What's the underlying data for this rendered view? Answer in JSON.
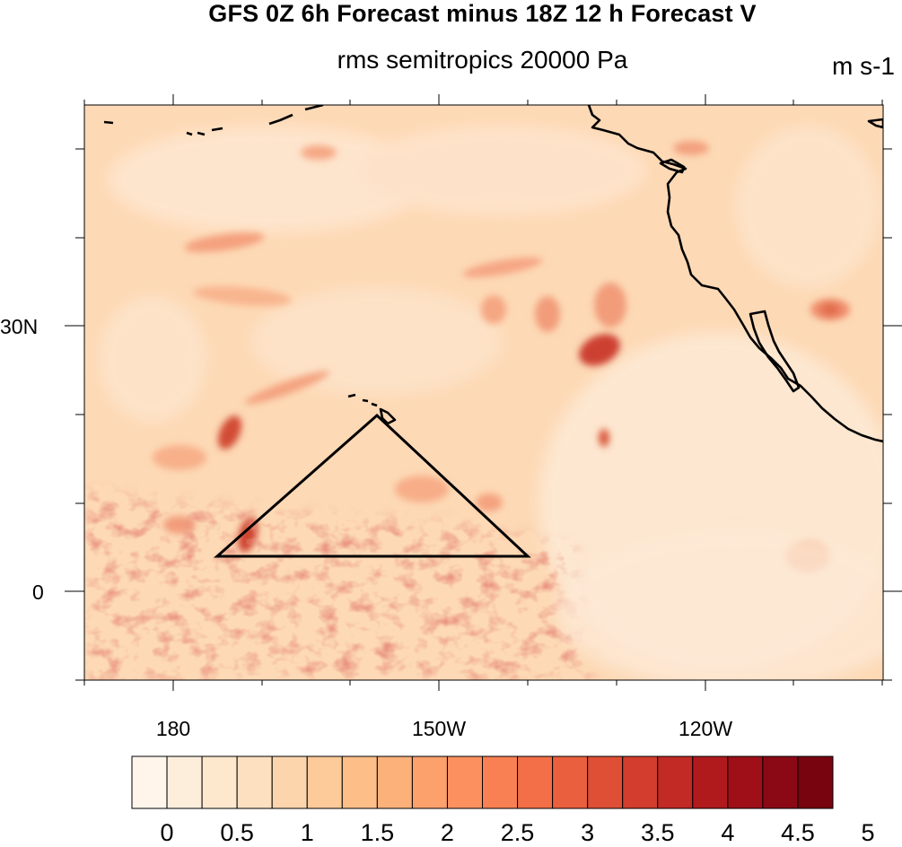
{
  "title": "GFS 0Z 6h Forecast minus 18Z 12 h Forecast V",
  "subtitle": "rms semitropics 20000 Pa",
  "units": "m s-1",
  "map": {
    "lat_labels": [
      "30N",
      "0"
    ],
    "lon_labels": [
      "180",
      "150W",
      "120W"
    ]
  },
  "colorbar": {
    "labels": [
      "0",
      "0.5",
      "1",
      "1.5",
      "2",
      "2.5",
      "3",
      "3.5",
      "4",
      "4.5",
      "5"
    ],
    "colors": [
      "#fff5eb",
      "#fdeedc",
      "#fde7cd",
      "#fde0c0",
      "#fdd5ad",
      "#fdca9a",
      "#fdbe88",
      "#fcb07a",
      "#fca06c",
      "#fc915f",
      "#f88052",
      "#f26f47",
      "#ea5f3d",
      "#de4f35",
      "#d23d2d",
      "#c22a25",
      "#b11a1d",
      "#9e0f18",
      "#8b0915",
      "#780410"
    ]
  },
  "overlay": {
    "shape": "triangle",
    "color": "#000000"
  }
}
